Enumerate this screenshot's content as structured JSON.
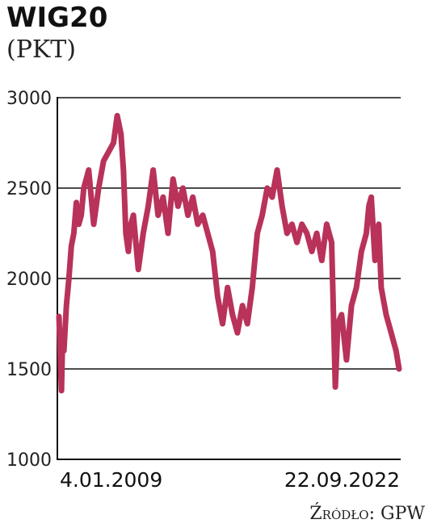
{
  "header": {
    "title": "WIG20",
    "subtitle": "(PKT)"
  },
  "footer": {
    "source": "Źródło: GPW"
  },
  "chart_data": {
    "type": "line",
    "title": "WIG20",
    "ylabel": "(PKT)",
    "ylim": [
      1000,
      3000
    ],
    "yticks": [
      3000,
      2500,
      2000,
      1500,
      1000
    ],
    "x_start_label": "4.01.2009",
    "x_end_label": "22.09.2022",
    "grid": "horizontal",
    "color": "#b8325a",
    "series": [
      {
        "x": [
          2009.0,
          2009.1,
          2009.15,
          2009.2,
          2009.3,
          2009.4,
          2009.5,
          2009.6,
          2009.7,
          2009.8,
          2009.9,
          2010.0,
          2010.2,
          2010.4,
          2010.6,
          2010.8,
          2011.0,
          2011.2,
          2011.35,
          2011.5,
          2011.6,
          2011.7,
          2011.8,
          2011.9,
          2012.0,
          2012.2,
          2012.4,
          2012.6,
          2012.8,
          2013.0,
          2013.2,
          2013.4,
          2013.6,
          2013.8,
          2014.0,
          2014.2,
          2014.4,
          2014.6,
          2014.8,
          2015.0,
          2015.2,
          2015.4,
          2015.6,
          2015.8,
          2016.0,
          2016.2,
          2016.4,
          2016.6,
          2016.8,
          2017.0,
          2017.2,
          2017.4,
          2017.6,
          2017.8,
          2018.0,
          2018.2,
          2018.4,
          2018.6,
          2018.8,
          2019.0,
          2019.2,
          2019.4,
          2019.6,
          2019.8,
          2020.0,
          2020.15,
          2020.25,
          2020.4,
          2020.6,
          2020.8,
          2021.0,
          2021.2,
          2021.4,
          2021.5,
          2021.6,
          2021.75,
          2021.9,
          2022.0,
          2022.2,
          2022.4,
          2022.6,
          2022.72
        ],
        "y": [
          1790,
          1380,
          1700,
          1600,
          1850,
          2000,
          2180,
          2250,
          2420,
          2300,
          2350,
          2500,
          2600,
          2300,
          2500,
          2650,
          2700,
          2750,
          2900,
          2800,
          2600,
          2250,
          2150,
          2300,
          2350,
          2050,
          2250,
          2400,
          2600,
          2350,
          2450,
          2250,
          2550,
          2400,
          2500,
          2350,
          2450,
          2300,
          2350,
          2250,
          2150,
          1900,
          1750,
          1950,
          1800,
          1700,
          1850,
          1750,
          1950,
          2250,
          2350,
          2500,
          2450,
          2600,
          2400,
          2250,
          2300,
          2200,
          2300,
          2250,
          2150,
          2250,
          2100,
          2300,
          2200,
          1400,
          1750,
          1800,
          1550,
          1850,
          1950,
          2150,
          2250,
          2400,
          2450,
          2100,
          2300,
          1950,
          1800,
          1700,
          1600,
          1500
        ]
      }
    ]
  }
}
